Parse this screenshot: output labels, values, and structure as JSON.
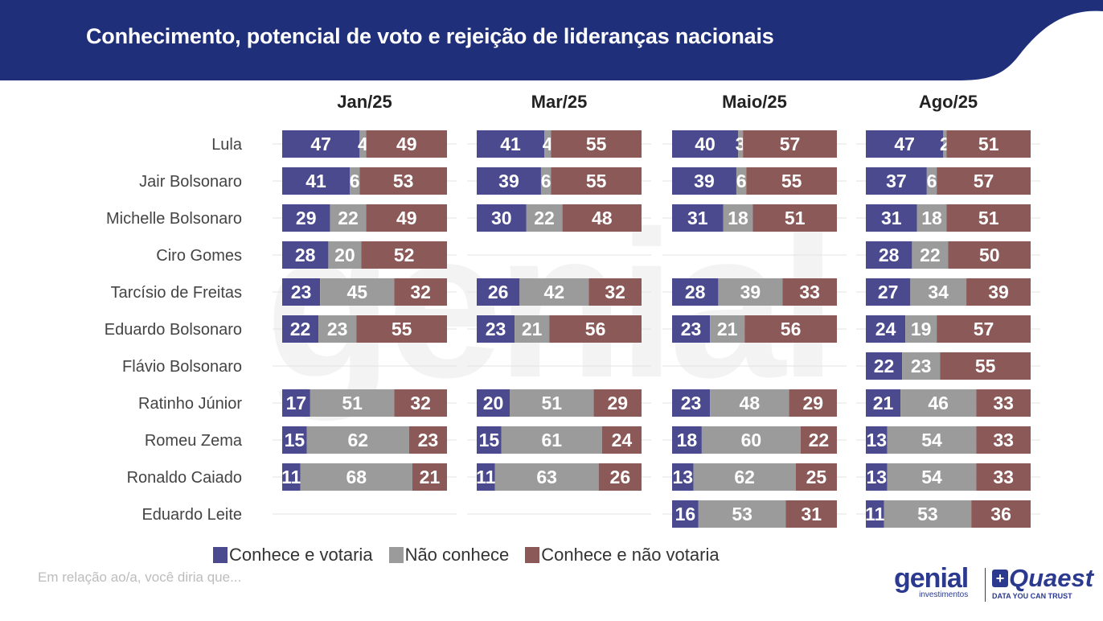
{
  "header": {
    "title": "Conhecimento, potencial de voto e rejeição de lideranças nacionais"
  },
  "watermark": "genial",
  "colors": {
    "header_bg": "#1f2f7a",
    "votaria": "#4b4a8f",
    "nao_conhece": "#9b9b9b",
    "nao_votaria": "#8b5a58"
  },
  "legend": [
    {
      "label": "Conhece e votaria",
      "color": "#4b4a8f"
    },
    {
      "label": "Não conhece",
      "color": "#9b9b9b"
    },
    {
      "label": "Conhece e não votaria",
      "color": "#8b5a58"
    }
  ],
  "footnote": "Em relação ao/a, você diria que...",
  "logos": {
    "genial": "genial",
    "genial_sub": "investimentos",
    "quaest": "Quaest",
    "quaest_sub": "DATA YOU CAN TRUST"
  },
  "chart_data": {
    "type": "bar",
    "orientation": "horizontal",
    "stacked": true,
    "percent_stacked": true,
    "categories": [
      "Lula",
      "Jair Bolsonaro",
      "Michelle Bolsonaro",
      "Ciro Gomes",
      "Tarcísio de Freitas",
      "Eduardo Bolsonaro",
      "Flávio Bolsonaro",
      "Ratinho Júnior",
      "Romeu Zema",
      "Ronaldo Caiado",
      "Eduardo Leite"
    ],
    "series_names": [
      "Conhece e votaria",
      "Não conhece",
      "Conhece e não votaria"
    ],
    "panels": [
      {
        "title": "Jan/25",
        "rows": [
          [
            47,
            4,
            49
          ],
          [
            41,
            6,
            53
          ],
          [
            29,
            22,
            49
          ],
          [
            28,
            20,
            52
          ],
          [
            23,
            45,
            32
          ],
          [
            22,
            23,
            55
          ],
          null,
          [
            17,
            51,
            32
          ],
          [
            15,
            62,
            23
          ],
          [
            11,
            68,
            21
          ],
          null
        ]
      },
      {
        "title": "Mar/25",
        "rows": [
          [
            41,
            4,
            55
          ],
          [
            39,
            6,
            55
          ],
          [
            30,
            22,
            48
          ],
          null,
          [
            26,
            42,
            32
          ],
          [
            23,
            21,
            56
          ],
          null,
          [
            20,
            51,
            29
          ],
          [
            15,
            61,
            24
          ],
          [
            11,
            63,
            26
          ],
          null
        ]
      },
      {
        "title": "Maio/25",
        "rows": [
          [
            40,
            3,
            57
          ],
          [
            39,
            6,
            55
          ],
          [
            31,
            18,
            51
          ],
          null,
          [
            28,
            39,
            33
          ],
          [
            23,
            21,
            56
          ],
          null,
          [
            23,
            48,
            29
          ],
          [
            18,
            60,
            22
          ],
          [
            13,
            62,
            25
          ],
          [
            16,
            53,
            31
          ]
        ]
      },
      {
        "title": "Ago/25",
        "rows": [
          [
            47,
            2,
            51
          ],
          [
            37,
            6,
            57
          ],
          [
            31,
            18,
            51
          ],
          [
            28,
            22,
            50
          ],
          [
            27,
            34,
            39
          ],
          [
            24,
            19,
            57
          ],
          [
            22,
            23,
            55
          ],
          [
            21,
            46,
            33
          ],
          [
            13,
            54,
            33
          ],
          [
            13,
            54,
            33
          ],
          [
            11,
            53,
            36
          ]
        ]
      }
    ]
  }
}
